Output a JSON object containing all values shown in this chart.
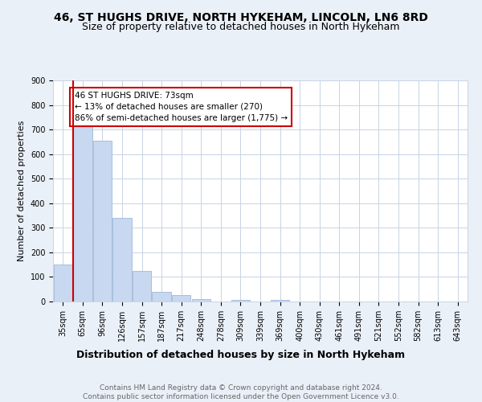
{
  "title1": "46, ST HUGHS DRIVE, NORTH HYKEHAM, LINCOLN, LN6 8RD",
  "title2": "Size of property relative to detached houses in North Hykeham",
  "xlabel": "Distribution of detached houses by size in North Hykeham",
  "ylabel": "Number of detached properties",
  "categories": [
    "35sqm",
    "65sqm",
    "96sqm",
    "126sqm",
    "157sqm",
    "187sqm",
    "217sqm",
    "248sqm",
    "278sqm",
    "309sqm",
    "339sqm",
    "369sqm",
    "400sqm",
    "430sqm",
    "461sqm",
    "491sqm",
    "521sqm",
    "552sqm",
    "582sqm",
    "613sqm",
    "643sqm"
  ],
  "values": [
    150,
    715,
    655,
    340,
    125,
    40,
    27,
    10,
    0,
    8,
    0,
    8,
    0,
    0,
    0,
    0,
    0,
    0,
    0,
    0,
    0
  ],
  "bar_color": "#c8d8f0",
  "bar_edge_color": "#a0b8d8",
  "vline_color": "#cc0000",
  "annotation_text": "46 ST HUGHS DRIVE: 73sqm\n← 13% of detached houses are smaller (270)\n86% of semi-detached houses are larger (1,775) →",
  "annotation_box_color": "white",
  "annotation_box_edge_color": "#cc0000",
  "ylim": [
    0,
    900
  ],
  "yticks": [
    0,
    100,
    200,
    300,
    400,
    500,
    600,
    700,
    800,
    900
  ],
  "bg_color": "#eaf0f8",
  "plot_bg_color": "white",
  "grid_color": "#c8d4e4",
  "footer": "Contains HM Land Registry data © Crown copyright and database right 2024.\nContains public sector information licensed under the Open Government Licence v3.0.",
  "title1_fontsize": 10,
  "title2_fontsize": 9,
  "xlabel_fontsize": 9,
  "ylabel_fontsize": 8,
  "tick_fontsize": 7,
  "annotation_fontsize": 7.5,
  "footer_fontsize": 6.5
}
